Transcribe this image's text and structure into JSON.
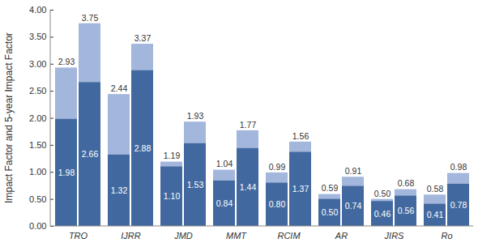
{
  "chart_data": {
    "type": "bar",
    "ylabel": "Impact Factor and 5-year Impact Factor",
    "categories": [
      "TRO",
      "IJRR",
      "JMD",
      "MMT",
      "RCIM",
      "AR",
      "JIRS",
      "Ro"
    ],
    "series": [
      {
        "color": "#a3b6dc",
        "values": [
          2.93,
          2.44,
          1.19,
          1.04,
          0.99,
          0.59,
          0.5,
          0.58
        ],
        "value_labels": [
          "2.93",
          "2.44",
          "1.19",
          "1.04",
          "0.99",
          "0.59",
          "0.50",
          "0.58"
        ],
        "inner_color": "#42699f",
        "inner_values": [
          1.98,
          1.32,
          1.1,
          0.84,
          0.8,
          0.5,
          0.46,
          0.41
        ],
        "inner_value_labels": [
          "1.98",
          "1.32",
          "1.10",
          "0.84",
          "0.80",
          "0.50",
          "0.46",
          "0.41"
        ]
      },
      {
        "color": "#a3b6dc",
        "values": [
          3.75,
          3.37,
          1.93,
          1.77,
          1.56,
          0.91,
          0.68,
          0.98
        ],
        "value_labels": [
          "3.75",
          "3.37",
          "1.93",
          "1.77",
          "1.56",
          "0.91",
          "0.68",
          "0.98"
        ],
        "inner_color": "#42699f",
        "inner_values": [
          2.66,
          2.88,
          1.53,
          1.44,
          1.37,
          0.74,
          0.56,
          0.78
        ],
        "inner_value_labels": [
          "2.66",
          "2.88",
          "1.53",
          "1.44",
          "1.37",
          "0.74",
          "0.56",
          "0.78"
        ]
      }
    ],
    "ylim": [
      0,
      4
    ],
    "yticks": [
      {
        "value": 0,
        "label": "0.00"
      },
      {
        "value": 0.5,
        "label": "0.50"
      },
      {
        "value": 1,
        "label": "1.00"
      },
      {
        "value": 1.5,
        "label": "1.50"
      },
      {
        "value": 2,
        "label": "2.00"
      },
      {
        "value": 2.5,
        "label": "2.50"
      },
      {
        "value": 3,
        "label": "3.00"
      },
      {
        "value": 3.5,
        "label": "3.50"
      },
      {
        "value": 4,
        "label": "4.00"
      }
    ],
    "grid": false,
    "data_labels": true
  }
}
